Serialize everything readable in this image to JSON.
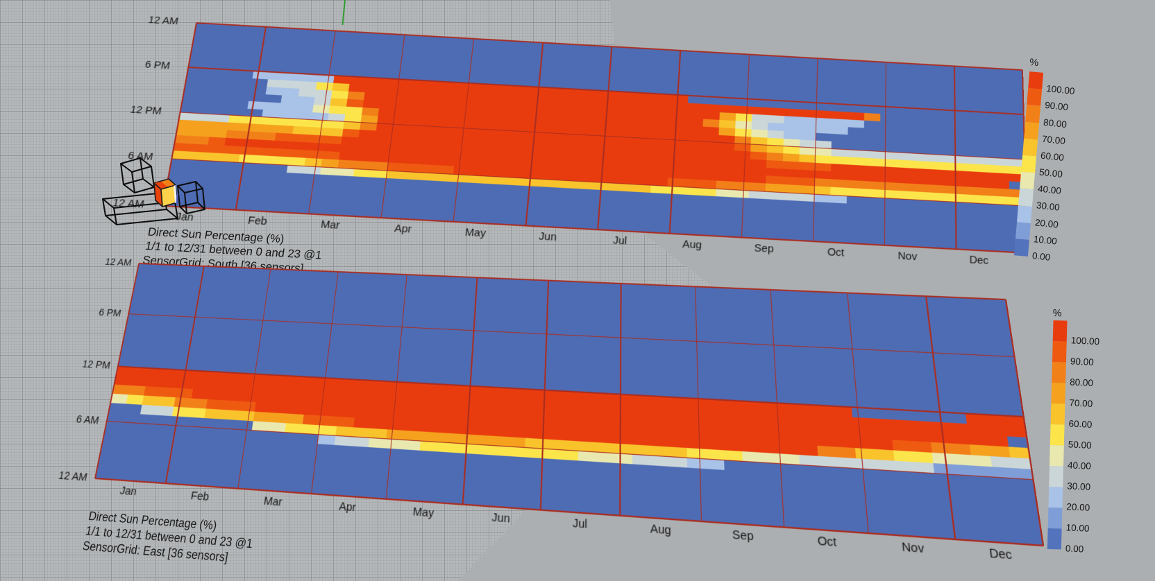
{
  "scene": {
    "background_color": "#acafb1",
    "grid_color": "#b5b8ba",
    "chart_line_color": "#a92d21",
    "axis_y_color": "#2f9e2f"
  },
  "palette": {
    ".": "#4e6cb4",
    "0": "#5473bd",
    "1": "#7f9ed8",
    "2": "#a9c2e7",
    "3": "#cbd6d8",
    "4": "#e9e9af",
    "5": "#fce54b",
    "6": "#f9c32c",
    "7": "#f5a11d",
    "8": "#f28019",
    "9": "#ef5a11",
    "a": "#e93c0e"
  },
  "legend": {
    "unit": "%",
    "labels": [
      "100.00",
      "90.00",
      "80.00",
      "70.00",
      "60.00",
      "50.00",
      "40.00",
      "30.00",
      "20.00",
      "10.00",
      "0.00"
    ],
    "colors": [
      "#e93c0e",
      "#ef5a11",
      "#f28019",
      "#f5a11d",
      "#f9c32c",
      "#fce54b",
      "#e9e9af",
      "#cbd6d8",
      "#a9c2e7",
      "#7f9ed8",
      "#5473bd"
    ]
  },
  "chart_data": [
    {
      "type": "heatmap",
      "title": "Direct Sun Percentage (%)",
      "subtitle": "1/1 to 12/31 between 0 and 23 @1",
      "sensor_grid": "SensorGrid: South [36 sensors]",
      "value_unit": "%",
      "value_range": [
        0,
        100
      ],
      "x_categories": [
        "Jan",
        "Feb",
        "Mar",
        "Apr",
        "May",
        "Jun",
        "Jul",
        "Aug",
        "Sep",
        "Oct",
        "Nov",
        "Dec"
      ],
      "y_axis": {
        "labels": [
          "12 AM",
          "6 PM",
          "12 PM",
          "6 AM",
          "12 AM"
        ],
        "top_to_bottom": true
      },
      "encoding": "24 rows (top=11PM..bottom=12AM) x 52 week-columns; char maps to palette: '.'=0-10%, '1'..'9'=10..90% bands, 'a'=100%",
      "rows_encoded": [
        "....................................................",
        "....................................................",
        "....................................................",
        "....................................................",
        "....................................................",
        "....................................................",
        "....22222aaaaaaaaaaaaaaaaaaaaaa.....................",
        ".....33356aaaaaaaaaaaaaaaaaaaaaaaaaaaaaaaa8.........",
        ".....223358aaaaaaaaaaaaaaaaaaaaaa753322222...........",
        "......22369aaaaaaaaaaaaaaaaaaaaa864322222...........",
        "....22224558aaaaaaaaaaaaaaaaaaaaa754322.............",
        ".....2222357aaaaaaaaaaaaaaaaaaaaaa865433............",
        "333555555568aaaaaaaaaaaaaaaaaaaaaa976544333333333333",
        "77777776669aaaaaaaaaaaaaaaaaaaaaaaa98765555555555555",
        "7778889999aaaaaaaaaaaaaaaaaaaaaaaaaa9999aaaaaaaaaaaa",
        "889aaaaaaaaaaaaaaaaaaaaaaaaaaaaaaaaaaaaaaaaaaaaaaaa",
        "9999999999aaaaaaaaaaaaaaaaaaaaaaaaaa9998888888888888",
        "66665555678889999aaaaaaaaaaaaa9998887776555555555555",
        ".......3344556666666666666666555544333322...........",
        "....................................................",
        "....................................................",
        "....................................................",
        "....................................................",
        "...................................................."
      ]
    },
    {
      "type": "heatmap",
      "title": "Direct Sun Percentage (%)",
      "subtitle": "1/1 to 12/31 between 0 and 23 @1",
      "sensor_grid": "SensorGrid: East [36 sensors]",
      "value_unit": "%",
      "value_range": [
        0,
        100
      ],
      "x_categories": [
        "Jan",
        "Feb",
        "Mar",
        "Apr",
        "May",
        "Jun",
        "Jul",
        "Aug",
        "Sep",
        "Oct",
        "Nov",
        "Dec"
      ],
      "y_axis": {
        "labels": [
          "12 AM",
          "6 PM",
          "12 PM",
          "6 AM",
          "12 AM"
        ],
        "top_to_bottom": true
      },
      "encoding": "24 rows (top=11PM..bottom=12AM) x 52 week-columns; char maps to palette: '.'=0-10%, '1'..'9'=10..90% bands, 'a'=100%",
      "rows_encoded": [
        "....................................................",
        "....................................................",
        "....................................................",
        "....................................................",
        "....................................................",
        "....................................................",
        "....................................................",
        "....................................................",
        "....................................................",
        "....................................................",
        "....................................................",
        "....................................................",
        "aaaaaaaaaaaaaaaaaaaaaaaaaaaaaaaaaaaaaaaaaaa......aaa",
        "aaaaaaaaaaaaaaaaaaaaaaaaaaaaaaaaaaaaaaaaaaaaaaaaaaaa",
        "88999aaaaaaaaaaaaaaaaaaaaaaaaaaaaaaaaaaaaaaaaaaaaaa",
        "456688999aaaaaaaaaaaaaaaaaaaaaaaaaaaaaaaaaaaa9988776",
        "..3355666777999aaaaaaaaaaaaaaaaaaaaaaaaaa88665544433",
        ".........445556667777777766666666655544433333331 1111",
        ".............233444555555555444333 22................",
        "....................................................",
        "....................................................",
        "....................................................",
        "....................................................",
        "...................................................."
      ]
    }
  ]
}
